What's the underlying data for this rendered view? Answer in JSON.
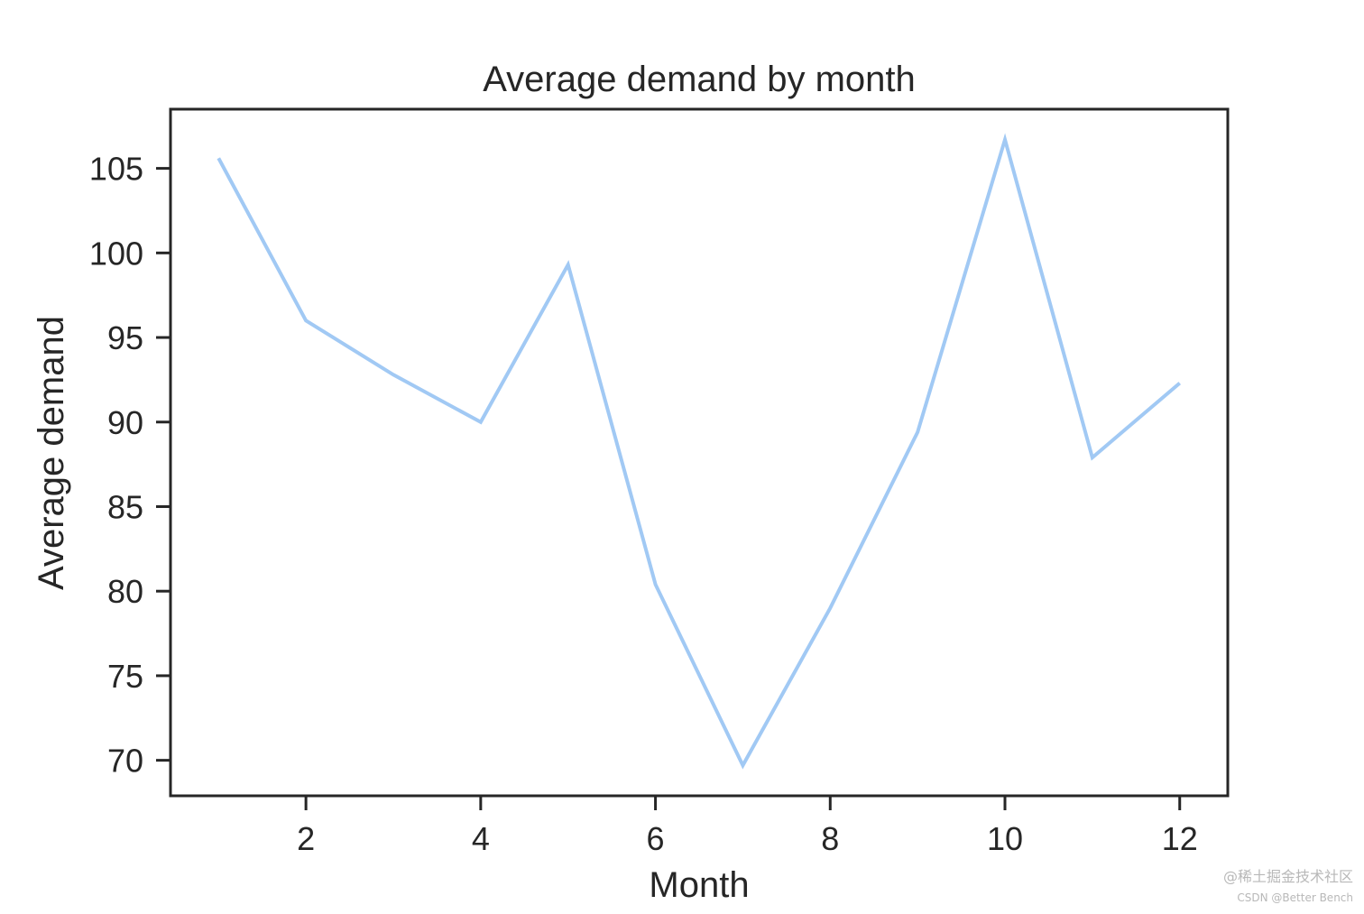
{
  "chart_data": {
    "type": "line",
    "title": "Average demand by month",
    "xlabel": "Month",
    "ylabel": "Average demand",
    "xlim": [
      0.45,
      12.55
    ],
    "ylim": [
      67.9,
      108.5
    ],
    "x_ticks": [
      2,
      4,
      6,
      8,
      10,
      12
    ],
    "x_tick_labels": [
      "2",
      "4",
      "6",
      "8",
      "10",
      "12"
    ],
    "y_ticks": [
      70,
      75,
      80,
      85,
      90,
      95,
      100,
      105
    ],
    "y_tick_labels": [
      "70",
      "75",
      "80",
      "85",
      "90",
      "95",
      "100",
      "105"
    ],
    "grid": false,
    "legend": "none",
    "series": [
      {
        "name": "Average demand",
        "color": "#a1c9f4",
        "x": [
          1,
          2,
          3,
          4,
          5,
          6,
          7,
          8,
          9,
          10,
          11,
          12
        ],
        "y": [
          105.6,
          96.0,
          92.8,
          90.0,
          99.3,
          80.4,
          69.7,
          79.0,
          89.4,
          106.7,
          87.9,
          92.3
        ]
      }
    ],
    "axis_color": "#262626",
    "text_color": "#262626"
  },
  "watermark": {
    "line1": "@稀土掘金技术社区",
    "line2": "CSDN @Better Bench"
  }
}
